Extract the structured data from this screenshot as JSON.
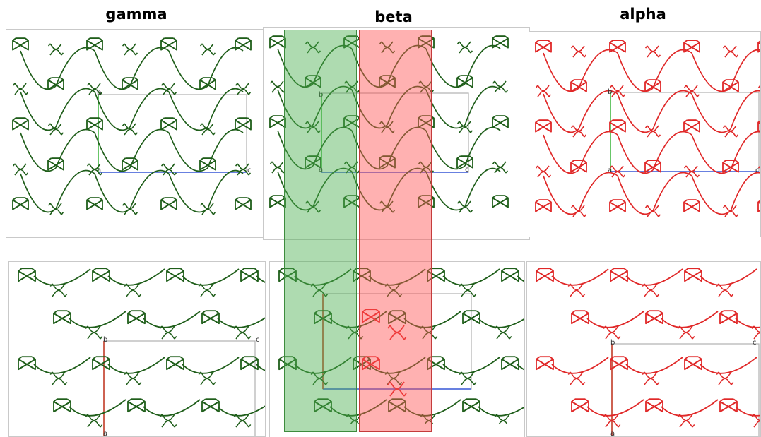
{
  "titles": {
    "gamma": "gamma",
    "beta": "beta",
    "alpha": "alpha"
  },
  "axes": {
    "a": "a",
    "b": "b",
    "c": "c"
  },
  "colors": {
    "gamma": "#1f5e1a",
    "alpha": "#e02828",
    "beta_green_band": "#4caf50",
    "beta_red_band": "#ff5252",
    "cell_box": "#b0b0b0",
    "axis_c": "#3b5bdb",
    "axis_b": "#2fb52f",
    "axis_a": "#e03030"
  }
}
